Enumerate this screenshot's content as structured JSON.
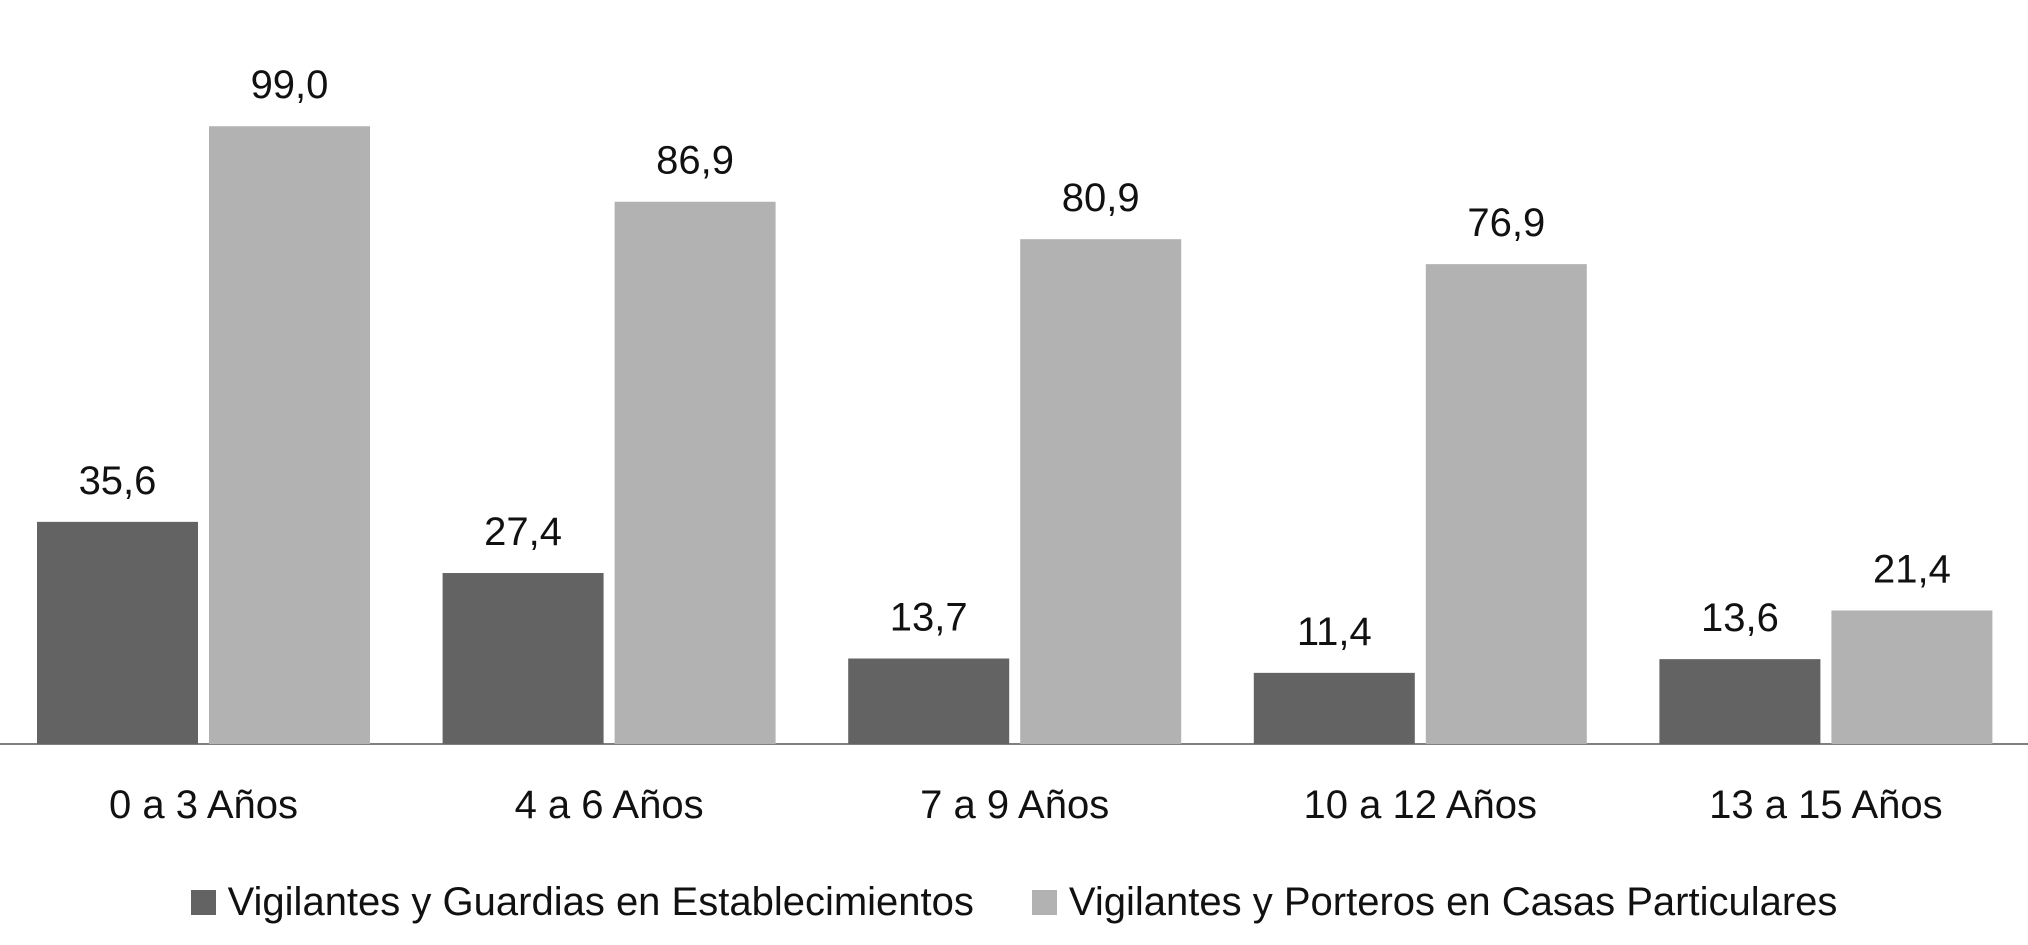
{
  "chart_data": {
    "type": "bar",
    "categories": [
      "0 a 3 Años",
      "4 a 6 Años",
      "7 a 9 Años",
      "10 a 12 Años",
      "13 a 15 Años"
    ],
    "series": [
      {
        "name": "Vigilantes y Guardias en Establecimientos",
        "values": [
          35.6,
          27.4,
          13.7,
          11.4,
          13.6
        ],
        "labels": [
          "35,6",
          "27,4",
          "13,7",
          "11,4",
          "13,6"
        ],
        "color": "#636363"
      },
      {
        "name": "Vigilantes y Porteros en Casas Particulares",
        "values": [
          99.0,
          86.9,
          80.9,
          76.9,
          21.4
        ],
        "labels": [
          "99,0",
          "86,9",
          "80,9",
          "76,9",
          "21,4"
        ],
        "color": "#b2b2b2"
      }
    ],
    "title": "",
    "xlabel": "",
    "ylabel": "",
    "ylim": [
      0,
      100
    ],
    "grid": false,
    "legend_position": "bottom"
  }
}
